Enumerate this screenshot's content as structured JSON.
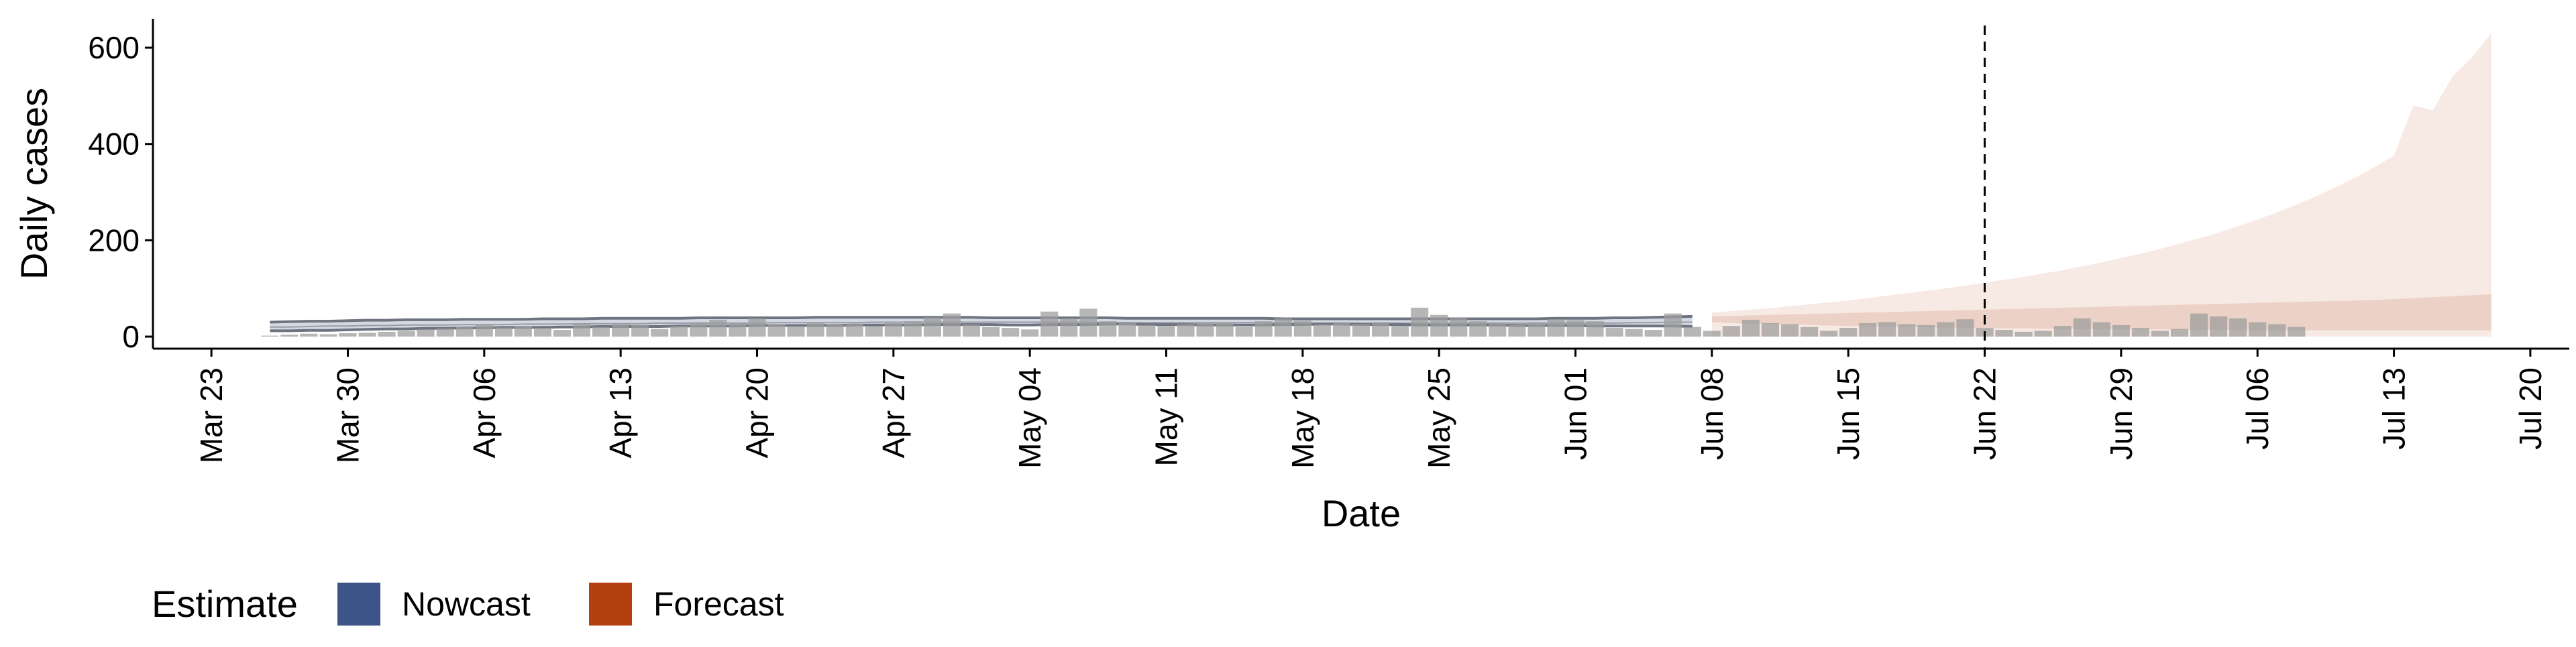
{
  "chart_data": {
    "type": "area",
    "xlabel": "Date",
    "ylabel": "Daily cases",
    "x_range": [
      "2020-03-20",
      "2020-07-22"
    ],
    "ylim": [
      -25,
      660
    ],
    "y_ticks": [
      0,
      200,
      400,
      600
    ],
    "x_ticks": [
      {
        "date": "2020-03-23",
        "label": "Mar 23"
      },
      {
        "date": "2020-03-30",
        "label": "Mar 30"
      },
      {
        "date": "2020-04-06",
        "label": "Apr 06"
      },
      {
        "date": "2020-04-13",
        "label": "Apr 13"
      },
      {
        "date": "2020-04-20",
        "label": "Apr 20"
      },
      {
        "date": "2020-04-27",
        "label": "Apr 27"
      },
      {
        "date": "2020-05-04",
        "label": "May 04"
      },
      {
        "date": "2020-05-11",
        "label": "May 11"
      },
      {
        "date": "2020-05-18",
        "label": "May 18"
      },
      {
        "date": "2020-05-25",
        "label": "May 25"
      },
      {
        "date": "2020-06-01",
        "label": "Jun 01"
      },
      {
        "date": "2020-06-08",
        "label": "Jun 08"
      },
      {
        "date": "2020-06-15",
        "label": "Jun 15"
      },
      {
        "date": "2020-06-22",
        "label": "Jun 22"
      },
      {
        "date": "2020-06-29",
        "label": "Jun 29"
      },
      {
        "date": "2020-07-06",
        "label": "Jul 06"
      },
      {
        "date": "2020-07-13",
        "label": "Jul 13"
      },
      {
        "date": "2020-07-20",
        "label": "Jul 20"
      }
    ],
    "grid": false,
    "legend": {
      "placement": "bottom-left",
      "title": "Estimate",
      "entries": [
        {
          "name": "Nowcast",
          "color": "#3C5488"
        },
        {
          "name": "Forecast",
          "color": "#B5400F"
        }
      ]
    },
    "colors": {
      "bars": "#9e9e9e",
      "nowcast_band": "#c2c8d4",
      "nowcast_line": "#6e7480",
      "forecast_outer": "#f7e9e3",
      "forecast_inner": "#ecd2c6",
      "vline": "#000000"
    },
    "vline": {
      "date": "2020-06-22",
      "style": "dashed"
    },
    "bars": {
      "start_date": "2020-03-26",
      "values": [
        2,
        4,
        6,
        5,
        7,
        8,
        10,
        12,
        15,
        17,
        20,
        24,
        19,
        22,
        18,
        14,
        28,
        20,
        25,
        24,
        16,
        22,
        30,
        35,
        28,
        38,
        26,
        22,
        30,
        25,
        27,
        22,
        28,
        32,
        40,
        48,
        25,
        20,
        18,
        15,
        52,
        38,
        58,
        32,
        28,
        24,
        22,
        26,
        29,
        30,
        20,
        32,
        38,
        33,
        25,
        28,
        26,
        30,
        22,
        60,
        45,
        40,
        32,
        28,
        24,
        30,
        36,
        34,
        32,
        18,
        16,
        14,
        48,
        20,
        12,
        22,
        35,
        28,
        26,
        20,
        12,
        18,
        28,
        30,
        26,
        24,
        30,
        36,
        18,
        14,
        10,
        12,
        22,
        38,
        30,
        24,
        18,
        12,
        16,
        48,
        42,
        38,
        30,
        26,
        20
      ]
    },
    "nowcast": {
      "start_date": "2020-03-26",
      "end_date": "2020-06-07",
      "lower": [
        12,
        12,
        13,
        13,
        14,
        15,
        16,
        16,
        17,
        17,
        18,
        18,
        19,
        19,
        19,
        20,
        20,
        21,
        21,
        21,
        21,
        22,
        22,
        22,
        22,
        23,
        23,
        23,
        23,
        23,
        24,
        24,
        24,
        24,
        25,
        25,
        25,
        25,
        24,
        24,
        25,
        25,
        25,
        26,
        26,
        25,
        25,
        25,
        24,
        24,
        24,
        24,
        25,
        25,
        26,
        26,
        25,
        25,
        25,
        24,
        24,
        24,
        24,
        24,
        23,
        23,
        23,
        23,
        22,
        22,
        22,
        22,
        22,
        21
      ],
      "median": [
        20,
        20,
        21,
        22,
        22,
        23,
        23,
        24,
        24,
        24,
        25,
        25,
        25,
        26,
        26,
        26,
        27,
        27,
        27,
        27,
        28,
        28,
        28,
        28,
        28,
        28,
        29,
        29,
        29,
        29,
        29,
        30,
        30,
        30,
        30,
        30,
        30,
        30,
        30,
        30,
        30,
        30,
        30,
        29,
        29,
        29,
        29,
        29,
        29,
        29,
        29,
        29,
        28,
        28,
        28,
        28,
        28,
        28,
        28,
        28,
        28,
        28,
        28,
        28,
        28,
        28,
        28,
        28,
        28,
        28,
        29,
        29,
        30,
        30
      ],
      "upper": [
        30,
        31,
        32,
        32,
        33,
        34,
        34,
        35,
        35,
        35,
        36,
        36,
        36,
        36,
        37,
        37,
        37,
        38,
        38,
        38,
        38,
        38,
        39,
        39,
        39,
        39,
        39,
        39,
        40,
        40,
        40,
        40,
        40,
        40,
        40,
        40,
        40,
        39,
        39,
        39,
        39,
        39,
        39,
        39,
        38,
        38,
        38,
        38,
        38,
        38,
        38,
        38,
        37,
        37,
        37,
        37,
        37,
        37,
        37,
        37,
        37,
        37,
        37,
        37,
        37,
        37,
        38,
        38,
        38,
        39,
        39,
        40,
        41,
        42
      ]
    },
    "forecast": {
      "start_date": "2020-06-08",
      "end_date": "2020-07-18",
      "outer_lower": [
        0,
        0,
        0,
        0,
        0,
        0,
        0,
        0,
        0,
        0,
        0,
        0,
        0,
        0,
        0,
        0,
        0,
        0,
        0,
        0,
        0,
        0,
        0,
        0,
        0,
        0,
        0,
        0,
        0,
        0,
        0,
        0,
        0,
        0,
        0,
        0,
        0,
        0,
        0,
        0,
        0
      ],
      "inner_lower": [
        30,
        28,
        27,
        26,
        25,
        24,
        23,
        22,
        21,
        20,
        20,
        19,
        19,
        18,
        18,
        17,
        17,
        16,
        16,
        16,
        15,
        15,
        15,
        15,
        14,
        14,
        14,
        14,
        13,
        13,
        13,
        13,
        13,
        13,
        13,
        13,
        13,
        13,
        13,
        13,
        13
      ],
      "inner_upper": [
        42,
        43,
        44,
        45,
        46,
        47,
        48,
        49,
        50,
        51,
        52,
        53,
        54,
        55,
        56,
        57,
        58,
        59,
        60,
        61,
        62,
        63,
        64,
        65,
        66,
        67,
        68,
        69,
        70,
        71,
        72,
        73,
        74,
        75,
        76,
        78,
        80,
        82,
        84,
        86,
        88
      ],
      "outer_upper": [
        50,
        53,
        56,
        59,
        63,
        67,
        71,
        75,
        80,
        85,
        90,
        95,
        100,
        106,
        112,
        118,
        124,
        131,
        138,
        146,
        154,
        163,
        172,
        182,
        193,
        204,
        216,
        229,
        243,
        258,
        274,
        291,
        310,
        330,
        352,
        376,
        480,
        470,
        540,
        580,
        630
      ]
    }
  }
}
